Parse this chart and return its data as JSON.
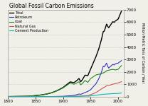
{
  "title": "Global Fossil Carbon Emissions",
  "ylabel": "Million Metric Tons of Carbon / Year",
  "xlim": [
    1800,
    2010
  ],
  "ylim": [
    0,
    7000
  ],
  "yticks": [
    0,
    1000,
    2000,
    3000,
    4000,
    5000,
    6000,
    7000
  ],
  "xticks": [
    1800,
    1850,
    1900,
    1950,
    2000
  ],
  "bg_color": "#f0f0e8",
  "grid_color": "#bbbbbb",
  "series": {
    "Total": {
      "color": "#000000",
      "lw": 1.0
    },
    "Petroleum": {
      "color": "#3333bb",
      "lw": 0.8
    },
    "Coal": {
      "color": "#228822",
      "lw": 0.8
    },
    "Natural Gas": {
      "color": "#cc5555",
      "lw": 0.8
    },
    "Cement Production": {
      "color": "#00bbbb",
      "lw": 0.8
    }
  }
}
